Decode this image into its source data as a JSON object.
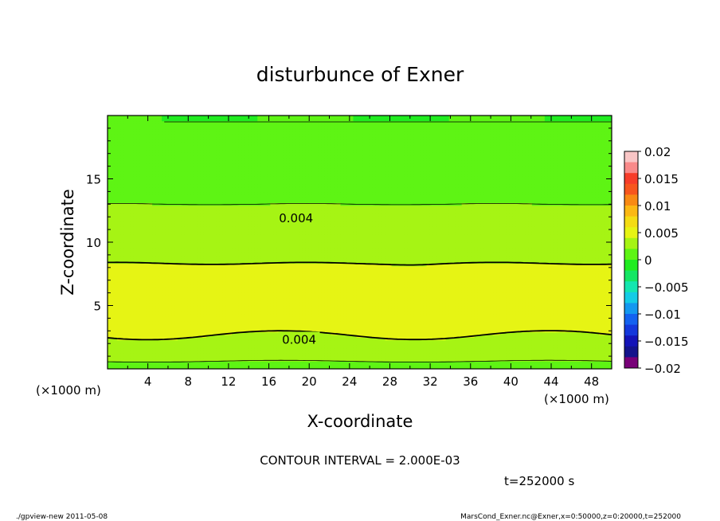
{
  "chart_data": {
    "type": "contour",
    "title": "disturbunce of Exner",
    "xlabel": "X-coordinate",
    "ylabel": "Z-coordinate",
    "x_unit_left": "(×1000 m)",
    "x_unit_right": "(×1000 m)",
    "x_ticks": [
      "4",
      "8",
      "12",
      "16",
      "20",
      "24",
      "28",
      "32",
      "36",
      "40",
      "44",
      "48"
    ],
    "x_tick_values": [
      4,
      8,
      12,
      16,
      20,
      24,
      28,
      32,
      36,
      40,
      44,
      48
    ],
    "y_ticks": [
      "5",
      "10",
      "15"
    ],
    "y_tick_values": [
      5,
      10,
      15
    ],
    "xlim": [
      0,
      50
    ],
    "ylim": [
      0,
      20
    ],
    "contour_interval": 0.002,
    "contour_labels": [
      {
        "text": "0.004",
        "x": 18.7,
        "z": 11.9
      },
      {
        "text": "0.004",
        "x": 19.0,
        "z": 2.3
      }
    ],
    "profile_z": [
      0.2,
      1.0,
      2.0,
      3.0,
      4.0,
      4.8,
      5.3,
      6.0,
      6.8,
      7.5,
      8.6,
      10.0,
      11.0,
      12.0,
      13.0,
      14.0,
      15.0,
      16.0,
      17.5,
      19.5
    ],
    "profile_value": [
      0.0015,
      0.0025,
      0.0036,
      0.0042,
      0.0047,
      0.0051,
      0.0053,
      0.0053,
      0.0051,
      0.0046,
      0.0038,
      0.0034,
      0.003,
      0.0026,
      0.002,
      0.0016,
      0.0012,
      0.0008,
      0.0004,
      0.0
    ],
    "contour_levels": [
      0.0,
      0.002,
      0.004
    ],
    "colorbar": {
      "labels": [
        "0.02",
        "0.015",
        "0.01",
        "0.005",
        "0",
        "−0.005",
        "−0.01",
        "−0.015",
        "−0.02"
      ],
      "levels": [
        0.02,
        0.015,
        0.01,
        0.005,
        0,
        -0.005,
        -0.01,
        -0.015,
        -0.02
      ],
      "colors": [
        "#f9c6c6",
        "#f98a8a",
        "#f73d2a",
        "#f7561e",
        "#f88a14",
        "#fbb814",
        "#f4dc14",
        "#e6f414",
        "#a6f414",
        "#5ef414",
        "#20ec20",
        "#14e664",
        "#14e6b0",
        "#14cce6",
        "#1498f0",
        "#1462f0",
        "#1438dc",
        "#1414b8",
        "#14148c",
        "#780078"
      ]
    },
    "contour_interval_text": "CONTOUR INTERVAL = 2.000E-03"
  },
  "time_label": "t=252000 s",
  "footer_left": "./gpview-new  2011-05-08",
  "footer_right": "MarsCond_Exner.nc@Exner,x=0:50000,z=0:20000,t=252000"
}
